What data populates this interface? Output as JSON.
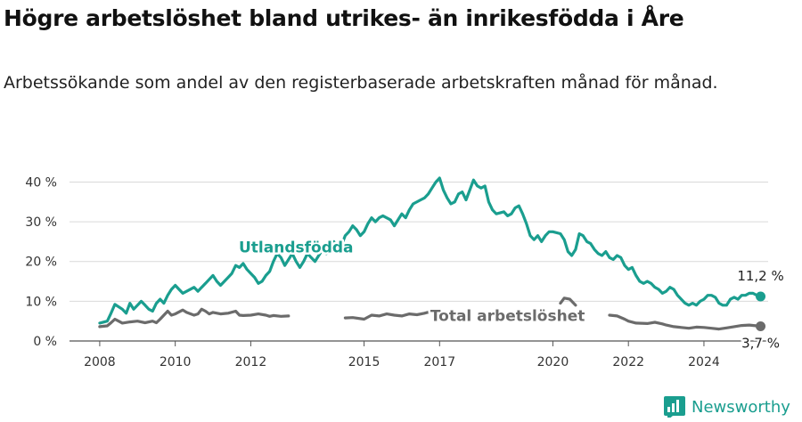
{
  "header": {
    "title": "Högre arbetslöshet bland utrikes- än inrikesfödda i Åre",
    "subtitle": "Arbetssökande som andel av den registerbaserade arbetskraften månad för månad."
  },
  "logo": {
    "text": "Newsworthy",
    "icon": "newsworthy-bar-icon"
  },
  "chart_data": {
    "type": "line",
    "title": "Högre arbetslöshet bland utrikes- än inrikesfödda i Åre",
    "subtitle": "Arbetssökande som andel av den registerbaserade arbetskraften månad för månad.",
    "xlim": [
      2007.2,
      2025.7
    ],
    "ylim": [
      0,
      41
    ],
    "y_ticks": [
      0,
      10,
      20,
      30,
      40
    ],
    "y_tick_labels": [
      "0 %",
      "10 %",
      "20 %",
      "30 %",
      "40 %"
    ],
    "x_ticks": [
      2008,
      2010,
      2012,
      2015,
      2017,
      2020,
      2022,
      2024
    ],
    "x_tick_labels": [
      "2008",
      "2010",
      "2012",
      "2015",
      "2017",
      "2020",
      "2022",
      "2024"
    ],
    "grid": "horizontal",
    "legend": "inline labels",
    "series": [
      {
        "name": "Utlandsfödda",
        "color": "#1a9e8f",
        "end_value_label": "11,2 %",
        "points": [
          [
            2008.0,
            4.5
          ],
          [
            2008.2,
            5.0
          ],
          [
            2008.3,
            7.0
          ],
          [
            2008.4,
            9.2
          ],
          [
            2008.6,
            8.0
          ],
          [
            2008.7,
            7.0
          ],
          [
            2008.8,
            9.5
          ],
          [
            2008.9,
            8.0
          ],
          [
            2009.0,
            9.0
          ],
          [
            2009.1,
            10.0
          ],
          [
            2009.2,
            9.0
          ],
          [
            2009.3,
            8.0
          ],
          [
            2009.4,
            7.5
          ],
          [
            2009.5,
            9.5
          ],
          [
            2009.6,
            10.5
          ],
          [
            2009.7,
            9.5
          ],
          [
            2009.8,
            11.5
          ],
          [
            2009.9,
            13.0
          ],
          [
            2010.0,
            14.0
          ],
          [
            2010.1,
            13.0
          ],
          [
            2010.2,
            12.0
          ],
          [
            2010.3,
            12.5
          ],
          [
            2010.5,
            13.5
          ],
          [
            2010.6,
            12.5
          ],
          [
            2010.7,
            13.5
          ],
          [
            2010.8,
            14.5
          ],
          [
            2010.9,
            15.5
          ],
          [
            2011.0,
            16.5
          ],
          [
            2011.1,
            15.0
          ],
          [
            2011.2,
            14.0
          ],
          [
            2011.3,
            15.0
          ],
          [
            2011.4,
            16.0
          ],
          [
            2011.5,
            17.0
          ],
          [
            2011.6,
            19.0
          ],
          [
            2011.7,
            18.5
          ],
          [
            2011.8,
            19.5
          ],
          [
            2011.9,
            18.0
          ],
          [
            2012.0,
            17.0
          ],
          [
            2012.1,
            16.0
          ],
          [
            2012.2,
            14.5
          ],
          [
            2012.3,
            15.0
          ],
          [
            2012.4,
            16.5
          ],
          [
            2012.5,
            17.5
          ],
          [
            2012.6,
            20.0
          ],
          [
            2012.7,
            22.0
          ],
          [
            2012.8,
            21.0
          ],
          [
            2012.9,
            19.0
          ],
          [
            2013.0,
            20.5
          ],
          [
            2013.1,
            22.0
          ],
          [
            2013.2,
            20.0
          ],
          [
            2013.3,
            18.5
          ],
          [
            2013.4,
            20.0
          ],
          [
            2013.5,
            22.0
          ],
          [
            2013.6,
            21.0
          ],
          [
            2013.7,
            20.0
          ],
          [
            2013.8,
            21.5
          ],
          [
            2013.9,
            23.0
          ],
          [
            2014.0,
            22.0
          ],
          [
            2014.1,
            23.5
          ],
          [
            2014.2,
            25.0
          ],
          [
            2014.3,
            23.5
          ],
          [
            2014.4,
            24.0
          ],
          [
            2014.5,
            26.5
          ],
          [
            2014.6,
            27.5
          ],
          [
            2014.7,
            29.0
          ],
          [
            2014.8,
            28.0
          ],
          [
            2014.9,
            26.5
          ],
          [
            2015.0,
            27.5
          ],
          [
            2015.1,
            29.5
          ],
          [
            2015.2,
            31.0
          ],
          [
            2015.3,
            30.0
          ],
          [
            2015.4,
            31.0
          ],
          [
            2015.5,
            31.5
          ],
          [
            2015.7,
            30.5
          ],
          [
            2015.8,
            29.0
          ],
          [
            2015.9,
            30.5
          ],
          [
            2016.0,
            32.0
          ],
          [
            2016.1,
            31.0
          ],
          [
            2016.2,
            33.0
          ],
          [
            2016.3,
            34.5
          ],
          [
            2016.5,
            35.5
          ],
          [
            2016.6,
            36.0
          ],
          [
            2016.7,
            37.0
          ],
          [
            2016.8,
            38.5
          ],
          [
            2016.9,
            40.0
          ],
          [
            2017.0,
            41.0
          ],
          [
            2017.1,
            38.0
          ],
          [
            2017.2,
            36.0
          ],
          [
            2017.3,
            34.5
          ],
          [
            2017.4,
            35.0
          ],
          [
            2017.5,
            37.0
          ],
          [
            2017.6,
            37.5
          ],
          [
            2017.7,
            35.5
          ],
          [
            2017.8,
            38.0
          ],
          [
            2017.9,
            40.5
          ],
          [
            2018.0,
            39.0
          ],
          [
            2018.1,
            38.5
          ],
          [
            2018.2,
            39.0
          ],
          [
            2018.3,
            35.0
          ],
          [
            2018.4,
            33.0
          ],
          [
            2018.5,
            32.0
          ],
          [
            2018.7,
            32.5
          ],
          [
            2018.8,
            31.5
          ],
          [
            2018.9,
            32.0
          ],
          [
            2019.0,
            33.5
          ],
          [
            2019.1,
            34.0
          ],
          [
            2019.2,
            32.0
          ],
          [
            2019.3,
            29.5
          ],
          [
            2019.4,
            26.5
          ],
          [
            2019.5,
            25.5
          ],
          [
            2019.6,
            26.5
          ],
          [
            2019.7,
            25.0
          ],
          [
            2019.8,
            26.5
          ],
          [
            2019.9,
            27.5
          ],
          [
            2020.0,
            27.5
          ],
          [
            2020.2,
            27.0
          ],
          [
            2020.3,
            25.5
          ],
          [
            2020.4,
            22.5
          ],
          [
            2020.5,
            21.5
          ],
          [
            2020.6,
            23.0
          ],
          [
            2020.7,
            27.0
          ],
          [
            2020.8,
            26.5
          ],
          [
            2020.9,
            25.0
          ],
          [
            2021.0,
            24.5
          ],
          [
            2021.1,
            23.0
          ],
          [
            2021.2,
            22.0
          ],
          [
            2021.3,
            21.5
          ],
          [
            2021.4,
            22.5
          ],
          [
            2021.5,
            21.0
          ],
          [
            2021.6,
            20.5
          ],
          [
            2021.7,
            21.5
          ],
          [
            2021.8,
            21.0
          ],
          [
            2021.9,
            19.0
          ],
          [
            2022.0,
            18.0
          ],
          [
            2022.1,
            18.5
          ],
          [
            2022.2,
            16.5
          ],
          [
            2022.3,
            15.0
          ],
          [
            2022.4,
            14.5
          ],
          [
            2022.5,
            15.0
          ],
          [
            2022.6,
            14.5
          ],
          [
            2022.7,
            13.5
          ],
          [
            2022.8,
            13.0
          ],
          [
            2022.9,
            12.0
          ],
          [
            2023.0,
            12.5
          ],
          [
            2023.1,
            13.5
          ],
          [
            2023.2,
            13.0
          ],
          [
            2023.3,
            11.5
          ],
          [
            2023.4,
            10.5
          ],
          [
            2023.5,
            9.5
          ],
          [
            2023.6,
            9.0
          ],
          [
            2023.7,
            9.5
          ],
          [
            2023.8,
            9.0
          ],
          [
            2023.9,
            10.0
          ],
          [
            2024.0,
            10.5
          ],
          [
            2024.1,
            11.5
          ],
          [
            2024.2,
            11.5
          ],
          [
            2024.3,
            11.0
          ],
          [
            2024.4,
            9.5
          ],
          [
            2024.5,
            9.0
          ],
          [
            2024.6,
            9.0
          ],
          [
            2024.7,
            10.5
          ],
          [
            2024.8,
            11.0
          ],
          [
            2024.9,
            10.5
          ],
          [
            2025.0,
            11.5
          ],
          [
            2025.1,
            11.5
          ],
          [
            2025.2,
            12.0
          ],
          [
            2025.3,
            12.0
          ],
          [
            2025.4,
            11.5
          ],
          [
            2025.5,
            11.2
          ]
        ]
      },
      {
        "name": "Total arbetslöshet",
        "color": "#6b6b6b",
        "end_value_label": "3,7 %",
        "points": [
          [
            2008.0,
            3.6
          ],
          [
            2008.2,
            3.8
          ],
          [
            2008.3,
            4.6
          ],
          [
            2008.4,
            5.5
          ],
          [
            2008.5,
            5.0
          ],
          [
            2008.6,
            4.5
          ],
          [
            2008.8,
            4.8
          ],
          [
            2009.0,
            5.0
          ],
          [
            2009.2,
            4.6
          ],
          [
            2009.4,
            5.0
          ],
          [
            2009.5,
            4.6
          ],
          [
            2009.6,
            5.5
          ],
          [
            2009.7,
            6.5
          ],
          [
            2009.8,
            7.5
          ],
          [
            2009.9,
            6.5
          ],
          [
            2010.0,
            6.8
          ],
          [
            2010.2,
            7.8
          ],
          [
            2010.3,
            7.2
          ],
          [
            2010.5,
            6.5
          ],
          [
            2010.6,
            6.8
          ],
          [
            2010.7,
            8.0
          ],
          [
            2010.8,
            7.5
          ],
          [
            2010.9,
            6.8
          ],
          [
            2011.0,
            7.2
          ],
          [
            2011.2,
            6.8
          ],
          [
            2011.4,
            7.0
          ],
          [
            2011.6,
            7.5
          ],
          [
            2011.7,
            6.5
          ],
          [
            2011.8,
            6.4
          ],
          [
            2012.0,
            6.5
          ],
          [
            2012.2,
            6.8
          ],
          [
            2012.4,
            6.5
          ],
          [
            2012.5,
            6.2
          ],
          [
            2012.6,
            6.4
          ],
          [
            2012.8,
            6.2
          ],
          [
            2013.0,
            6.3
          ]
        ],
        "points_b": [
          [
            2014.5,
            5.8
          ],
          [
            2014.7,
            5.9
          ],
          [
            2015.0,
            5.5
          ],
          [
            2015.2,
            6.5
          ],
          [
            2015.4,
            6.3
          ],
          [
            2015.6,
            6.8
          ],
          [
            2015.8,
            6.5
          ],
          [
            2016.0,
            6.3
          ],
          [
            2016.2,
            6.8
          ],
          [
            2016.4,
            6.6
          ],
          [
            2016.6,
            7.0
          ],
          [
            2016.8,
            7.5
          ],
          [
            2017.0,
            7.2
          ]
        ],
        "points_c": [
          [
            2020.2,
            9.5
          ],
          [
            2020.3,
            10.8
          ],
          [
            2020.45,
            10.5
          ],
          [
            2020.6,
            9.0
          ]
        ],
        "points_d": [
          [
            2021.5,
            6.5
          ],
          [
            2021.7,
            6.3
          ],
          [
            2021.9,
            5.5
          ],
          [
            2022.0,
            5.0
          ],
          [
            2022.2,
            4.5
          ],
          [
            2022.5,
            4.4
          ],
          [
            2022.7,
            4.7
          ],
          [
            2022.9,
            4.3
          ],
          [
            2023.0,
            4.0
          ],
          [
            2023.2,
            3.6
          ],
          [
            2023.4,
            3.4
          ],
          [
            2023.6,
            3.2
          ],
          [
            2023.8,
            3.5
          ],
          [
            2024.0,
            3.4
          ],
          [
            2024.2,
            3.2
          ],
          [
            2024.4,
            3.0
          ],
          [
            2024.6,
            3.3
          ],
          [
            2024.8,
            3.6
          ],
          [
            2025.0,
            3.9
          ],
          [
            2025.2,
            4.0
          ],
          [
            2025.4,
            3.8
          ],
          [
            2025.5,
            3.7
          ]
        ]
      }
    ]
  }
}
